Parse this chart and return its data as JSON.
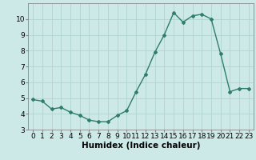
{
  "x": [
    0,
    1,
    2,
    3,
    4,
    5,
    6,
    7,
    8,
    9,
    10,
    11,
    12,
    13,
    14,
    15,
    16,
    17,
    18,
    19,
    20,
    21,
    22,
    23
  ],
  "y": [
    4.9,
    4.8,
    4.3,
    4.4,
    4.1,
    3.9,
    3.6,
    3.5,
    3.5,
    3.9,
    4.2,
    5.4,
    6.5,
    7.9,
    9.0,
    10.4,
    9.8,
    10.2,
    10.3,
    10.0,
    7.8,
    5.4,
    5.6,
    5.6
  ],
  "line_color": "#2e7d6e",
  "marker": "D",
  "marker_size": 2.0,
  "linewidth": 1.0,
  "xlabel": "Humidex (Indice chaleur)",
  "xlim": [
    -0.5,
    23.5
  ],
  "ylim": [
    3.0,
    11.0
  ],
  "yticks": [
    3,
    4,
    5,
    6,
    7,
    8,
    9,
    10
  ],
  "xticks": [
    0,
    1,
    2,
    3,
    4,
    5,
    6,
    7,
    8,
    9,
    10,
    11,
    12,
    13,
    14,
    15,
    16,
    17,
    18,
    19,
    20,
    21,
    22,
    23
  ],
  "xtick_labels": [
    "0",
    "1",
    "2",
    "3",
    "4",
    "5",
    "6",
    "7",
    "8",
    "9",
    "10",
    "11",
    "12",
    "13",
    "14",
    "15",
    "16",
    "17",
    "18",
    "19",
    "20",
    "21",
    "22",
    "23"
  ],
  "background_color": "#cce9e7",
  "grid_color": "#b0d4d2",
  "tick_fontsize": 6.5,
  "xlabel_fontsize": 7.5
}
